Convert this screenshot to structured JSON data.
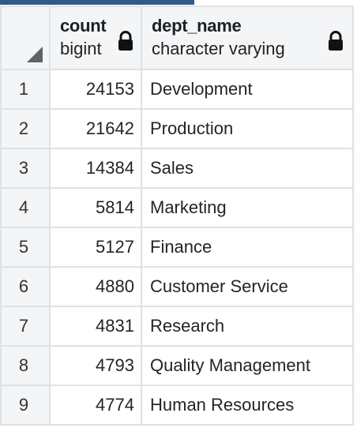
{
  "columns": [
    {
      "name": "count",
      "type": "bigint",
      "locked_icon": "lock-icon"
    },
    {
      "name": "dept_name",
      "type": "character varying",
      "locked_icon": "lock-icon"
    }
  ],
  "rows": [
    {
      "n": "1",
      "count": "24153",
      "dept_name": "Development"
    },
    {
      "n": "2",
      "count": "21642",
      "dept_name": "Production"
    },
    {
      "n": "3",
      "count": "14384",
      "dept_name": "Sales"
    },
    {
      "n": "4",
      "count": "5814",
      "dept_name": "Marketing"
    },
    {
      "n": "5",
      "count": "5127",
      "dept_name": "Finance"
    },
    {
      "n": "6",
      "count": "4880",
      "dept_name": "Customer Service"
    },
    {
      "n": "7",
      "count": "4831",
      "dept_name": "Research"
    },
    {
      "n": "8",
      "count": "4793",
      "dept_name": "Quality Management"
    },
    {
      "n": "9",
      "count": "4774",
      "dept_name": "Human Resources"
    }
  ],
  "colors": {
    "accent": "#2f5b8a",
    "header_bg": "#f3f5f7",
    "grid_line": "#dde2e7"
  }
}
